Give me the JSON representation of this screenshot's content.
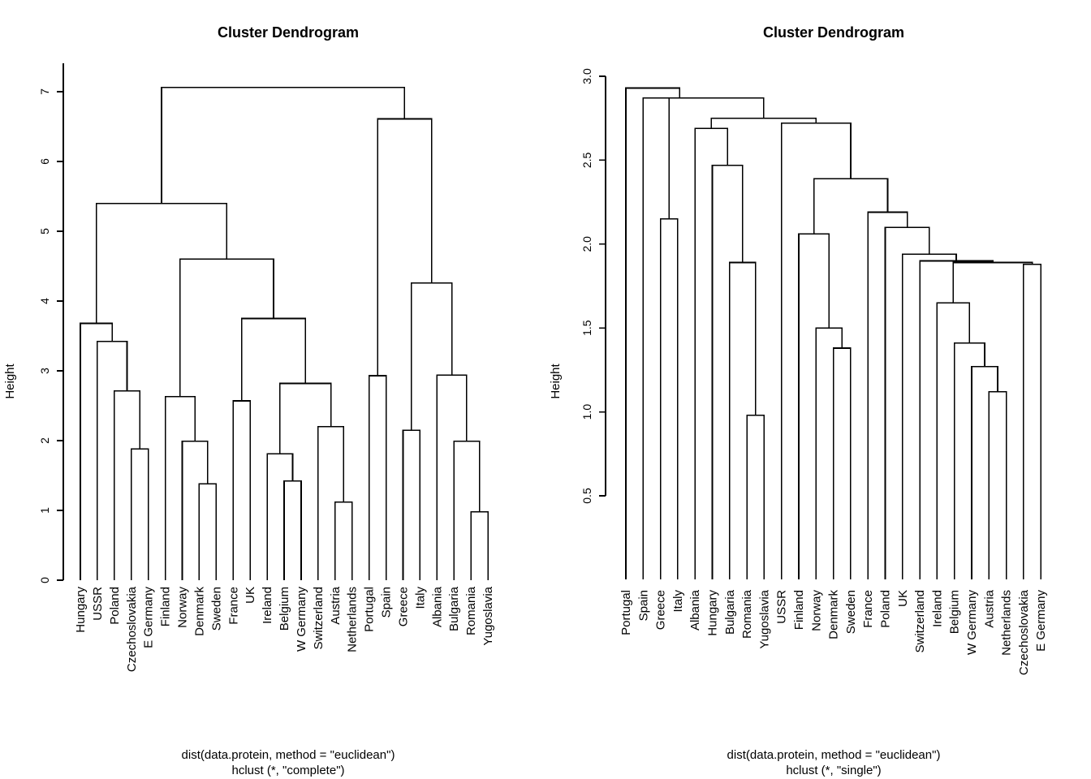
{
  "chart_data": [
    {
      "type": "dendrogram",
      "title": "Cluster Dendrogram",
      "ylabel": "Height",
      "xlabel": "dist(data.protein, method = \"euclidean\")",
      "sub": "hclust (*, \"complete\")",
      "ylim": [
        0,
        7.4
      ],
      "yticks": [
        0,
        1,
        2,
        3,
        4,
        5,
        6,
        7
      ],
      "labels": [
        "Hungary",
        "USSR",
        "Poland",
        "Czechoslovakia",
        "E Germany",
        "Finland",
        "Norway",
        "Denmark",
        "Sweden",
        "France",
        "UK",
        "Ireland",
        "Belgium",
        "W Germany",
        "Switzerland",
        "Austria",
        "Netherlands",
        "Portugal",
        "Spain",
        "Greece",
        "Italy",
        "Albania",
        "Bulgaria",
        "Romania",
        "Yugoslavia"
      ],
      "merges": [
        {
          "id": "m1",
          "a": "Czechoslovakia",
          "b": "E Germany",
          "h": 1.88
        },
        {
          "id": "m2",
          "a": "Poland",
          "b": "m1",
          "h": 2.71
        },
        {
          "id": "m3",
          "a": "USSR",
          "b": "m2",
          "h": 3.42
        },
        {
          "id": "m4",
          "a": "Hungary",
          "b": "m3",
          "h": 3.68
        },
        {
          "id": "m5",
          "a": "Denmark",
          "b": "Sweden",
          "h": 1.38
        },
        {
          "id": "m6",
          "a": "Norway",
          "b": "m5",
          "h": 1.99
        },
        {
          "id": "m7",
          "a": "Finland",
          "b": "m6",
          "h": 2.63
        },
        {
          "id": "m8",
          "a": "France",
          "b": "UK",
          "h": 2.57
        },
        {
          "id": "m9",
          "a": "Belgium",
          "b": "W Germany",
          "h": 1.42
        },
        {
          "id": "m10",
          "a": "Ireland",
          "b": "m9",
          "h": 1.81
        },
        {
          "id": "m11",
          "a": "Austria",
          "b": "Netherlands",
          "h": 1.12
        },
        {
          "id": "m12",
          "a": "Switzerland",
          "b": "m11",
          "h": 2.2
        },
        {
          "id": "m13",
          "a": "m10",
          "b": "m12",
          "h": 2.82
        },
        {
          "id": "m14",
          "a": "m8",
          "b": "m13",
          "h": 3.75
        },
        {
          "id": "m15",
          "a": "m7",
          "b": "m14",
          "h": 4.6
        },
        {
          "id": "m16",
          "a": "m4",
          "b": "m15",
          "h": 5.4
        },
        {
          "id": "m17",
          "a": "Portugal",
          "b": "Spain",
          "h": 2.93
        },
        {
          "id": "m18",
          "a": "Romania",
          "b": "Yugoslavia",
          "h": 0.98
        },
        {
          "id": "m19",
          "a": "Bulgaria",
          "b": "m18",
          "h": 1.99
        },
        {
          "id": "m20",
          "a": "Albania",
          "b": "m19",
          "h": 2.94
        },
        {
          "id": "m21",
          "a": "Greece",
          "b": "Italy",
          "h": 2.15
        },
        {
          "id": "m22",
          "a": "m21",
          "b": "m20",
          "h": 4.26
        },
        {
          "id": "m23",
          "a": "m17",
          "b": "m22",
          "h": 6.61
        },
        {
          "id": "m24",
          "a": "m16",
          "b": "m23",
          "h": 7.06
        }
      ]
    },
    {
      "type": "dendrogram",
      "title": "Cluster Dendrogram",
      "ylabel": "Height",
      "xlabel": "dist(data.protein, method = \"euclidean\")",
      "sub": "hclust (*, \"single\")",
      "ylim": [
        0.0,
        3.0
      ],
      "yticks": [
        0.5,
        1.0,
        1.5,
        2.0,
        2.5,
        3.0
      ],
      "labels": [
        "Portugal",
        "Spain",
        "Greece",
        "Italy",
        "Albania",
        "Hungary",
        "Bulgaria",
        "Romania",
        "Yugoslavia",
        "USSR",
        "Finland",
        "Norway",
        "Denmark",
        "Sweden",
        "France",
        "Poland",
        "UK",
        "Switzerland",
        "Ireland",
        "Belgium",
        "W Germany",
        "Austria",
        "Netherlands",
        "Czechoslovakia",
        "E Germany"
      ],
      "merges": [
        {
          "id": "s1",
          "a": "Romania",
          "b": "Yugoslavia",
          "h": 0.98
        },
        {
          "id": "s2",
          "a": "Austria",
          "b": "Netherlands",
          "h": 1.12
        },
        {
          "id": "s3",
          "a": "W Germany",
          "b": "s2",
          "h": 1.27
        },
        {
          "id": "s4",
          "a": "Denmark",
          "b": "Sweden",
          "h": 1.38
        },
        {
          "id": "s5",
          "a": "Belgium",
          "b": "s3",
          "h": 1.41
        },
        {
          "id": "s6",
          "a": "Norway",
          "b": "s4",
          "h": 1.5
        },
        {
          "id": "s7",
          "a": "Ireland",
          "b": "s5",
          "h": 1.65
        },
        {
          "id": "s8",
          "a": "Czechoslovakia",
          "b": "E Germany",
          "h": 1.88
        },
        {
          "id": "s9",
          "a": "Bulgaria",
          "b": "s1",
          "h": 1.89
        },
        {
          "id": "s10",
          "a": "s7",
          "b": "s8",
          "h": 1.89
        },
        {
          "id": "s11",
          "a": "Switzerland",
          "b": "s10",
          "h": 1.9
        },
        {
          "id": "s12",
          "a": "UK",
          "b": "s11",
          "h": 1.94
        },
        {
          "id": "s13",
          "a": "Finland",
          "b": "s6",
          "h": 2.06
        },
        {
          "id": "s14",
          "a": "Poland",
          "b": "s12",
          "h": 2.1
        },
        {
          "id": "s15",
          "a": "Greece",
          "b": "Italy",
          "h": 2.15
        },
        {
          "id": "s16",
          "a": "France",
          "b": "s14",
          "h": 2.19
        },
        {
          "id": "s17",
          "a": "s13",
          "b": "s16",
          "h": 2.39
        },
        {
          "id": "s18",
          "a": "Hungary",
          "b": "s9",
          "h": 2.47
        },
        {
          "id": "s19",
          "a": "Albania",
          "b": "s18",
          "h": 2.69
        },
        {
          "id": "s20",
          "a": "USSR",
          "b": "s17",
          "h": 2.72
        },
        {
          "id": "s21",
          "a": "s19",
          "b": "s20",
          "h": 2.75
        },
        {
          "id": "s22",
          "a": "s15",
          "b": "s21",
          "h": 2.87
        },
        {
          "id": "s23",
          "a": "Spain",
          "b": "s22",
          "h": 2.87
        },
        {
          "id": "s24",
          "a": "Portugal",
          "b": "s23",
          "h": 2.93
        }
      ]
    }
  ]
}
